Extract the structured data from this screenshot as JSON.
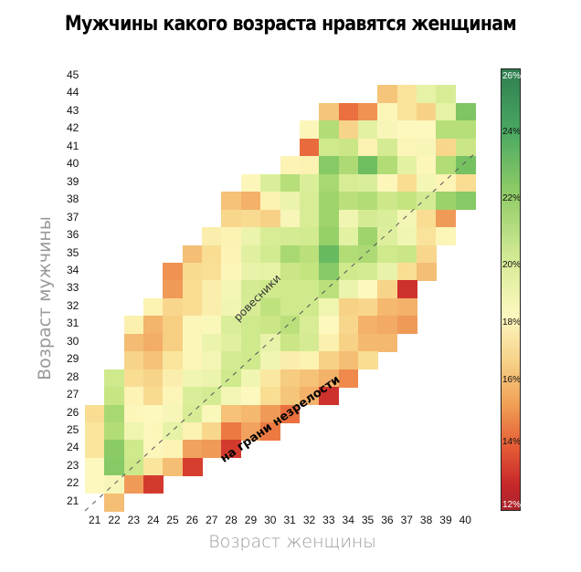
{
  "title": "Мужчины какого возраста нравятся женщинам",
  "chart_data": {
    "type": "heatmap",
    "title": "Мужчины какого возраста нравятся женщинам",
    "xlabel": "Возраст женщины",
    "ylabel": "Возраст мужчины",
    "x": [
      21,
      22,
      23,
      24,
      25,
      26,
      27,
      28,
      29,
      30,
      31,
      32,
      33,
      34,
      35,
      36,
      37,
      38,
      39,
      40
    ],
    "y": [
      45,
      44,
      43,
      42,
      41,
      40,
      39,
      38,
      37,
      36,
      35,
      34,
      33,
      32,
      31,
      30,
      29,
      28,
      27,
      26,
      25,
      24,
      23,
      22,
      21
    ],
    "colorbar": {
      "min": 12,
      "max": 26,
      "unit": "%",
      "ticks": [
        "26%",
        "24%",
        "22%",
        "20%",
        "18%",
        "16%",
        "14%",
        "12%"
      ]
    },
    "annotations": [
      "ровесники",
      "на грани незрелости"
    ],
    "diagonal_line": "y = x (dashed)",
    "values": {
      "45": [
        null,
        null,
        null,
        null,
        null,
        null,
        null,
        null,
        null,
        null,
        null,
        null,
        null,
        null,
        null,
        null,
        null,
        null,
        null,
        null
      ],
      "44": [
        null,
        null,
        null,
        null,
        null,
        null,
        null,
        null,
        null,
        null,
        null,
        null,
        null,
        null,
        null,
        16.8,
        17.8,
        19.8,
        20.3,
        null
      ],
      "43": [
        null,
        null,
        null,
        null,
        null,
        null,
        null,
        null,
        null,
        null,
        null,
        null,
        16.8,
        14.6,
        15.4,
        18.8,
        17.8,
        17.2,
        19.8,
        22.6
      ],
      "42": [
        null,
        null,
        null,
        null,
        null,
        null,
        null,
        null,
        null,
        null,
        null,
        18.9,
        21.4,
        17.3,
        19.9,
        19.2,
        19.0,
        19.0,
        21.3,
        21.3
      ],
      "41": [
        null,
        null,
        null,
        null,
        null,
        null,
        null,
        null,
        null,
        null,
        null,
        14.5,
        20.6,
        20.8,
        18.6,
        20.4,
        18.8,
        19.2,
        17.4,
        20.8
      ],
      "40": [
        null,
        null,
        null,
        null,
        null,
        null,
        null,
        null,
        null,
        null,
        18.7,
        18.6,
        22.4,
        21.5,
        23.0,
        21.4,
        19.9,
        18.9,
        21.4,
        22.8
      ],
      "39": [
        null,
        null,
        null,
        null,
        null,
        null,
        null,
        null,
        18.9,
        20.2,
        21.3,
        20.2,
        21.6,
        20.3,
        20.2,
        18.9,
        17.6,
        19.3,
        18.7,
        17.6
      ],
      "38": [
        null,
        null,
        null,
        null,
        null,
        null,
        null,
        16.7,
        16.2,
        18.6,
        19.6,
        20.3,
        21.8,
        21.2,
        21.4,
        20.7,
        21.0,
        20.4,
        21.9,
        22.4
      ],
      "37": [
        null,
        null,
        null,
        null,
        null,
        null,
        null,
        17.4,
        17.5,
        17.2,
        19.2,
        20.3,
        21.8,
        19.4,
        20.4,
        20.2,
        19.3,
        17.6,
        15.6,
        null
      ],
      "36": [
        null,
        null,
        null,
        null,
        null,
        null,
        18.4,
        18.6,
        19.6,
        20.3,
        20.4,
        20.5,
        22.0,
        19.9,
        21.8,
        20.1,
        19.4,
        17.8,
        18.8,
        null
      ],
      "35": [
        null,
        null,
        null,
        null,
        null,
        16.6,
        17.6,
        18.7,
        20.0,
        20.5,
        21.6,
        21.2,
        23.2,
        21.4,
        21.5,
        20.6,
        20.8,
        17.4,
        null,
        null
      ],
      "34": [
        null,
        null,
        null,
        null,
        15.4,
        17.5,
        17.7,
        18.9,
        19.7,
        19.8,
        20.8,
        21.0,
        22.4,
        20.6,
        20.4,
        19.7,
        17.6,
        16.6,
        null,
        null
      ],
      "33": [
        null,
        null,
        null,
        null,
        15.6,
        17.6,
        18.4,
        19.3,
        20.4,
        20.6,
        20.6,
        20.6,
        21.2,
        19.6,
        19.0,
        17.3,
        13.2,
        null,
        null,
        null
      ],
      "32": [
        null,
        null,
        null,
        18.6,
        17.4,
        17.6,
        18.4,
        19.4,
        20.3,
        21.1,
        20.6,
        20.6,
        19.5,
        17.2,
        17.4,
        16.4,
        16.2,
        null,
        null,
        null
      ],
      "31": [
        null,
        null,
        18.5,
        16.3,
        17.1,
        18.8,
        19.1,
        20.2,
        20.6,
        20.8,
        21.2,
        20.3,
        19.0,
        17.4,
        16.2,
        16.0,
        15.6,
        null,
        null,
        null
      ],
      "30": [
        null,
        null,
        16.5,
        16.1,
        17.1,
        18.9,
        19.6,
        20.0,
        20.6,
        19.7,
        20.8,
        20.4,
        18.5,
        17.2,
        16.4,
        16.4,
        null,
        null,
        null,
        null
      ],
      "29": [
        null,
        null,
        17.3,
        16.7,
        17.9,
        18.8,
        19.3,
        20.4,
        20.6,
        19.4,
        18.4,
        18.6,
        17.2,
        16.6,
        17.6,
        null,
        null,
        null,
        null,
        null
      ],
      "28": [
        null,
        20.6,
        17.6,
        17.3,
        18.4,
        19.4,
        19.6,
        20.6,
        19.4,
        18.0,
        17.0,
        16.7,
        16.2,
        15.2,
        null,
        null,
        null,
        null,
        null,
        null
      ],
      "27": [
        null,
        20.9,
        18.7,
        17.5,
        18.8,
        20.2,
        20.4,
        19.3,
        19.0,
        17.6,
        16.8,
        16.2,
        13.2,
        null,
        null,
        null,
        null,
        null,
        null,
        null
      ],
      "26": [
        17.6,
        21.6,
        18.9,
        19.0,
        19.2,
        20.3,
        19.1,
        16.7,
        16.4,
        15.6,
        14.6,
        null,
        null,
        null,
        null,
        null,
        null,
        null,
        null,
        null
      ],
      "25": [
        17.9,
        21.4,
        19.5,
        18.9,
        19.8,
        18.6,
        17.4,
        14.8,
        15.8,
        14.8,
        null,
        null,
        null,
        null,
        null,
        null,
        null,
        null,
        null,
        null
      ],
      "24": [
        17.9,
        22.3,
        20.6,
        18.9,
        18.7,
        15.8,
        15.6,
        13.4,
        null,
        null,
        null,
        null,
        null,
        null,
        null,
        null,
        null,
        null,
        null,
        null
      ],
      "23": [
        19.0,
        22.4,
        20.7,
        17.9,
        16.6,
        13.5,
        null,
        null,
        null,
        null,
        null,
        null,
        null,
        null,
        null,
        null,
        null,
        null,
        null,
        null
      ],
      "22": [
        19.0,
        19.2,
        15.6,
        13.4,
        null,
        null,
        null,
        null,
        null,
        null,
        null,
        null,
        null,
        null,
        null,
        null,
        null,
        null,
        null,
        null
      ],
      "21": [
        null,
        16.6,
        null,
        null,
        null,
        null,
        null,
        null,
        null,
        null,
        null,
        null,
        null,
        null,
        null,
        null,
        null,
        null,
        null,
        null
      ]
    }
  }
}
